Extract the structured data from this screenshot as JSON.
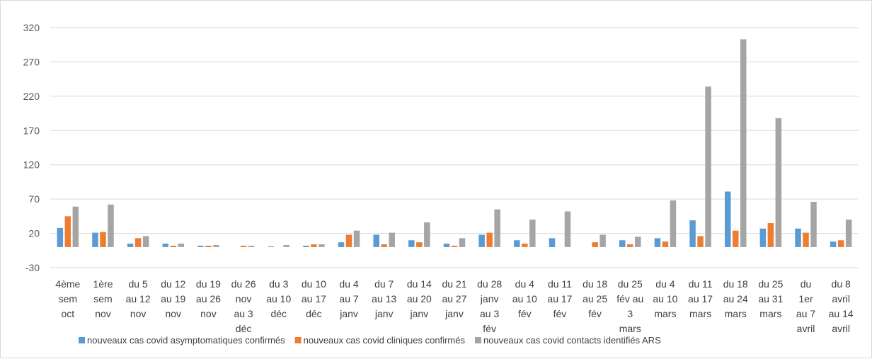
{
  "chart_data": {
    "type": "bar",
    "title": "",
    "xlabel": "",
    "ylabel": "",
    "ylim": [
      -30,
      320
    ],
    "yticks": [
      -30,
      20,
      70,
      120,
      170,
      220,
      270,
      320
    ],
    "grid": true,
    "legend_position": "bottom",
    "categories": [
      [
        "4ème",
        "sem",
        "oct"
      ],
      [
        "1ère",
        "sem",
        "nov"
      ],
      [
        "du 5",
        "au 12",
        "nov"
      ],
      [
        "du 12",
        "au 19",
        "nov"
      ],
      [
        "du 19",
        "au 26",
        "nov"
      ],
      [
        "du 26",
        "nov",
        "au 3",
        "déc"
      ],
      [
        "du 3",
        "au 10",
        "déc"
      ],
      [
        "du 10",
        "au 17",
        "déc"
      ],
      [
        "du 4",
        "au 7",
        "janv"
      ],
      [
        "du 7",
        "au 13",
        "janv"
      ],
      [
        "du 14",
        "au 20",
        "janv"
      ],
      [
        "du 21",
        "au 27",
        "janv"
      ],
      [
        "du 28",
        "janv",
        "au 3",
        "fév"
      ],
      [
        "du 4",
        "au 10",
        "fév"
      ],
      [
        "du 11",
        "au 17",
        "fév"
      ],
      [
        "du 18",
        "au 25",
        "fév"
      ],
      [
        "du 25",
        "fév au",
        "3",
        "mars"
      ],
      [
        "du 4",
        "au 10",
        "mars"
      ],
      [
        "du 11",
        "au 17",
        "mars"
      ],
      [
        "du 18",
        "au 24",
        "mars"
      ],
      [
        "du 25",
        "au 31",
        "mars"
      ],
      [
        "du",
        "1er",
        "au 7",
        "avril"
      ],
      [
        "du 8",
        "avril",
        "au 14",
        "avril"
      ]
    ],
    "series": [
      {
        "name": "nouveaux cas covid asymptomatiques confirmés",
        "color": "#5b9bd5",
        "values": [
          28,
          21,
          5,
          5,
          2,
          0,
          1,
          2,
          7,
          18,
          10,
          5,
          18,
          10,
          13,
          0,
          10,
          13,
          39,
          81,
          27,
          27,
          8
        ]
      },
      {
        "name": "nouveaux cas covid cliniques confirmés",
        "color": "#ed7d31",
        "values": [
          45,
          22,
          13,
          2,
          2,
          2,
          0,
          4,
          18,
          4,
          7,
          2,
          21,
          5,
          0,
          7,
          4,
          8,
          16,
          24,
          35,
          21,
          10
        ]
      },
      {
        "name": "nouveaux cas covid contacts identifiés ARS",
        "color": "#a5a5a5",
        "values": [
          59,
          62,
          16,
          5,
          3,
          2,
          3,
          4,
          24,
          21,
          36,
          13,
          55,
          40,
          52,
          18,
          15,
          68,
          234,
          303,
          188,
          66,
          40
        ]
      }
    ],
    "axis_color": "#d9d9d9"
  }
}
